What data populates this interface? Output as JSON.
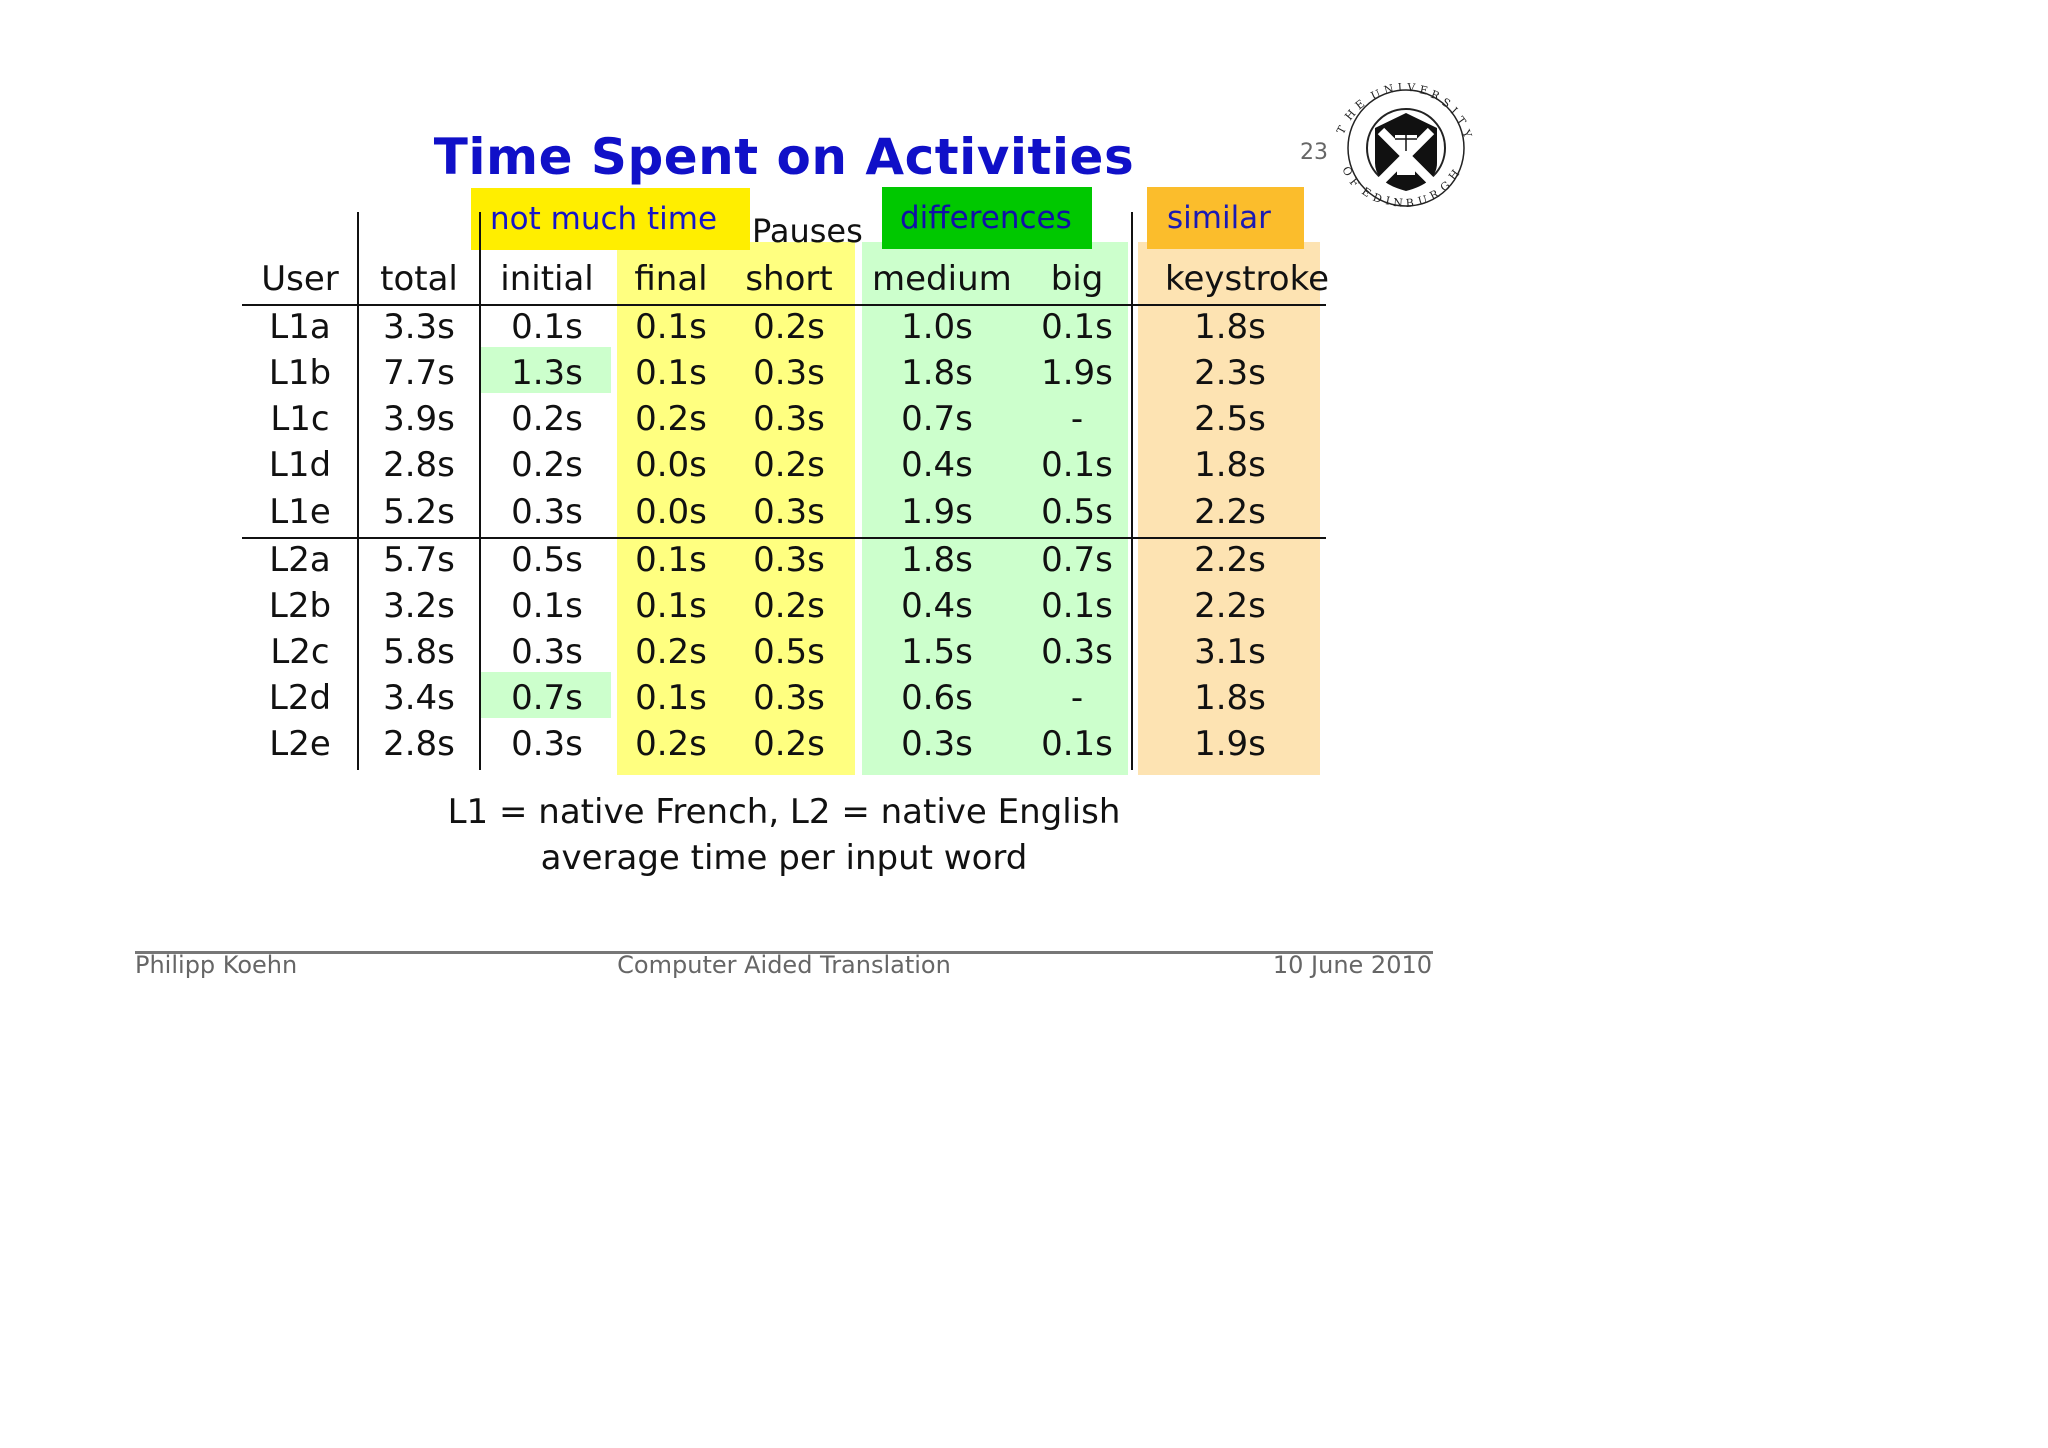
{
  "slide": {
    "title": "Time Spent on Activities",
    "page_number": "23"
  },
  "seal": {
    "ring_text": "THE UNIVERSITY OF EDINBURGH"
  },
  "tags": {
    "not_much_time": "not much time",
    "differences": "differences",
    "similar": "similar"
  },
  "table": {
    "group_header": "Pauses",
    "columns": [
      "User",
      "total",
      "initial",
      "final",
      "short",
      "medium",
      "big",
      "keystroke"
    ],
    "rows": [
      [
        "L1a",
        "3.3s",
        "0.1s",
        "0.1s",
        "0.2s",
        "1.0s",
        "0.1s",
        "1.8s"
      ],
      [
        "L1b",
        "7.7s",
        "1.3s",
        "0.1s",
        "0.3s",
        "1.8s",
        "1.9s",
        "2.3s"
      ],
      [
        "L1c",
        "3.9s",
        "0.2s",
        "0.2s",
        "0.3s",
        "0.7s",
        "-",
        "2.5s"
      ],
      [
        "L1d",
        "2.8s",
        "0.2s",
        "0.0s",
        "0.2s",
        "0.4s",
        "0.1s",
        "1.8s"
      ],
      [
        "L1e",
        "5.2s",
        "0.3s",
        "0.0s",
        "0.3s",
        "1.9s",
        "0.5s",
        "2.2s"
      ],
      [
        "L2a",
        "5.7s",
        "0.5s",
        "0.1s",
        "0.3s",
        "1.8s",
        "0.7s",
        "2.2s"
      ],
      [
        "L2b",
        "3.2s",
        "0.1s",
        "0.1s",
        "0.2s",
        "0.4s",
        "0.1s",
        "2.2s"
      ],
      [
        "L2c",
        "5.8s",
        "0.3s",
        "0.2s",
        "0.5s",
        "1.5s",
        "0.3s",
        "3.1s"
      ],
      [
        "L2d",
        "3.4s",
        "0.7s",
        "0.1s",
        "0.3s",
        "0.6s",
        "-",
        "1.8s"
      ],
      [
        "L2e",
        "2.8s",
        "0.3s",
        "0.2s",
        "0.2s",
        "0.3s",
        "0.1s",
        "1.9s"
      ]
    ]
  },
  "notes": {
    "line1": "L1 = native French, L2 = native English",
    "line2": "average time per input word"
  },
  "footer": {
    "author": "Philipp Koehn",
    "course": "Computer Aided Translation",
    "date": "10 June 2010"
  },
  "colors": {
    "title": "#1010c8",
    "tag_yellow": "#ffee00",
    "tag_green": "#00c800",
    "tag_orange": "#fbbd2c",
    "strip_yellow": "#ffff80",
    "strip_green": "#ccffcc",
    "strip_orange": "#fde3b2"
  }
}
